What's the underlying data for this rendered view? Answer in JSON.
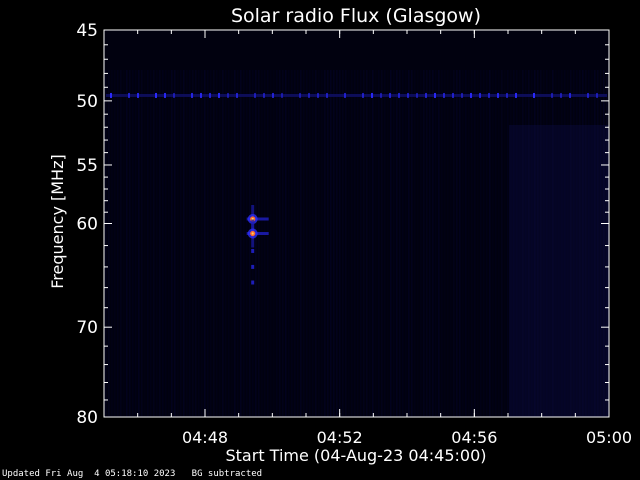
{
  "chart_data": {
    "type": "heatmap",
    "title": "Solar radio Flux (Glasgow)",
    "ylabel": "Frequency [MHz]",
    "xlabel": "Start Time (04-Aug-23 04:45:00)",
    "y_scale": "log",
    "ylim": [
      45,
      80
    ],
    "y_inverted": true,
    "y_ticks": [
      45,
      50,
      55,
      60,
      70,
      80
    ],
    "y_tick_labels": [
      "45",
      "50",
      "55",
      "60",
      "70",
      "80"
    ],
    "xlim": [
      "04:45:00",
      "05:00:00"
    ],
    "x_ticks": [
      "04:48",
      "04:52",
      "04:56",
      "05:00"
    ],
    "x_tick_labels": [
      "04:48",
      "04:52",
      "04:56",
      "05:00"
    ],
    "features": [
      {
        "kind": "interference_line",
        "frequency_mhz": 49.6,
        "color": "#2a2aff"
      },
      {
        "kind": "burst_spot",
        "time": "04:49:25",
        "frequency_mhz": 59.6,
        "color": "#ff6a2a"
      },
      {
        "kind": "burst_spot",
        "time": "04:49:25",
        "frequency_mhz": 60.9,
        "color": "#ff6a2a"
      }
    ],
    "colors": {
      "background": "#000000",
      "low": "#050530",
      "mid": "#2a2aff",
      "high": "#ff6a2a",
      "axes": "#ffffff"
    }
  },
  "footer": {
    "updated": "Updated Fri Aug  4 05:18:10 2023",
    "note": "BG subtracted"
  }
}
